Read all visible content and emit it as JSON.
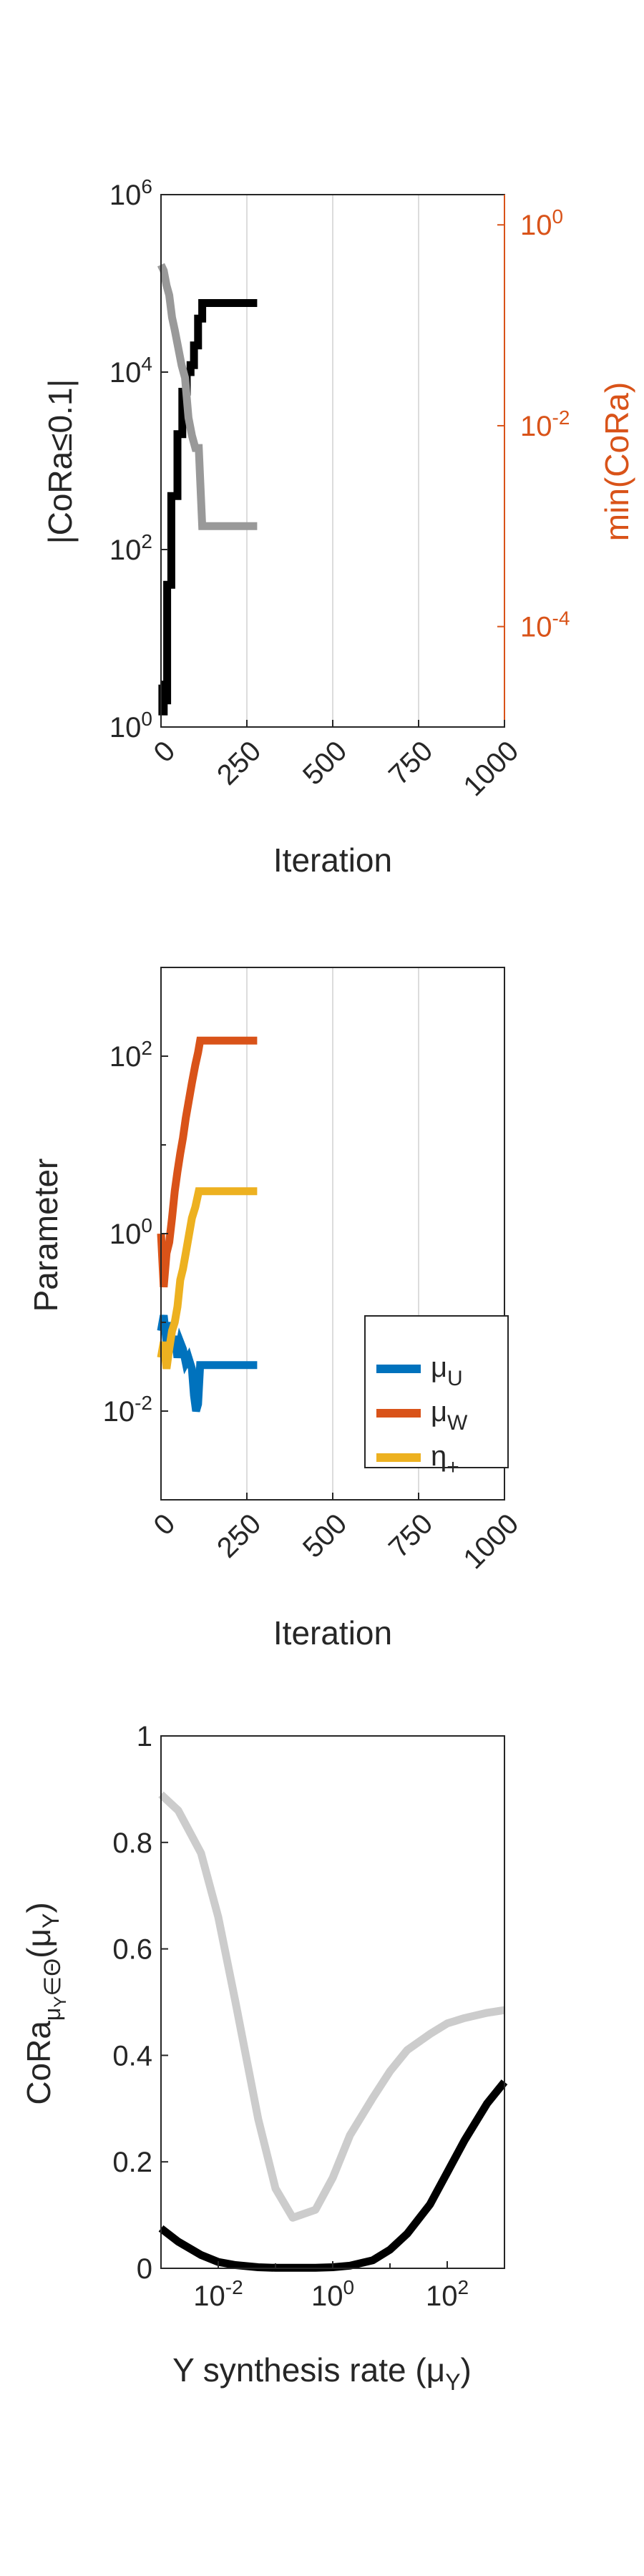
{
  "chart_data": [
    {
      "type": "line",
      "xlabel": "Iteration",
      "ylabel": "|CoRa≤0.1|",
      "ylabel_right": "min(CoRa)",
      "x_ticks": [
        "0",
        "250",
        "500",
        "750",
        "1000"
      ],
      "xlim": [
        0,
        1000
      ],
      "y_scale": "log",
      "ylim": [
        1,
        1000000
      ],
      "y_ticks": [
        {
          "base": "10",
          "exp": "0"
        },
        {
          "base": "10",
          "exp": "2"
        },
        {
          "base": "10",
          "exp": "4"
        },
        {
          "base": "10",
          "exp": "6"
        }
      ],
      "y_right_scale": "log",
      "ylim_right": [
        1e-05,
        2
      ],
      "y_right_ticks": [
        {
          "base": "10",
          "exp": "-4"
        },
        {
          "base": "10",
          "exp": "-2"
        },
        {
          "base": "10",
          "exp": "0"
        }
      ],
      "grid_x": true,
      "series": [
        {
          "axis": "left",
          "color": "#000000",
          "x": [
            0,
            4,
            4,
            8,
            8,
            18,
            18,
            30,
            30,
            48,
            48,
            62,
            62,
            75,
            75,
            86,
            86,
            96,
            96,
            108,
            108,
            120,
            120,
            280
          ],
          "y": [
            3,
            3,
            1.5,
            1.5,
            2,
            2,
            40,
            40,
            400,
            400,
            2000,
            2000,
            6000,
            6000,
            10000,
            10000,
            12000,
            12000,
            20000,
            20000,
            40000,
            40000,
            60000,
            60000
          ]
        },
        {
          "axis": "right",
          "color": "#999999",
          "x": [
            0,
            8,
            16,
            24,
            32,
            40,
            50,
            60,
            70,
            80,
            90,
            100,
            110,
            120,
            280
          ],
          "y": [
            0.4,
            0.35,
            0.25,
            0.2,
            0.12,
            0.09,
            0.06,
            0.04,
            0.03,
            0.012,
            0.008,
            0.006,
            0.006,
            0.001,
            0.001
          ]
        }
      ]
    },
    {
      "type": "line",
      "xlabel": "Iteration",
      "ylabel": "Parameter",
      "x_ticks": [
        "0",
        "250",
        "500",
        "750",
        "1000"
      ],
      "xlim": [
        0,
        1000
      ],
      "y_scale": "log",
      "ylim": [
        0.001,
        1000
      ],
      "y_ticks": [
        {
          "base": "10",
          "exp": "-2"
        },
        {
          "base": "10",
          "exp": "0"
        },
        {
          "base": "10",
          "exp": "2"
        }
      ],
      "grid_x": true,
      "legend_position": "right",
      "series": [
        {
          "name": "μU",
          "name_main": "μ",
          "name_sub": "U",
          "color": "#0072BD",
          "x": [
            0,
            8,
            16,
            24,
            32,
            40,
            48,
            56,
            64,
            72,
            80,
            90,
            96,
            102,
            108,
            114,
            120,
            280
          ],
          "y": [
            0.08,
            0.12,
            0.06,
            0.1,
            0.05,
            0.07,
            0.04,
            0.06,
            0.05,
            0.035,
            0.04,
            0.03,
            0.015,
            0.01,
            0.012,
            0.033,
            0.033,
            0.033
          ]
        },
        {
          "name": "μW",
          "name_main": "μ",
          "name_sub": "W",
          "color": "#D95319",
          "x": [
            0,
            8,
            16,
            24,
            32,
            40,
            48,
            56,
            64,
            72,
            80,
            90,
            100,
            108,
            114,
            120,
            280
          ],
          "y": [
            1,
            0.25,
            0.6,
            0.8,
            1.5,
            3,
            5,
            8,
            12,
            20,
            30,
            50,
            80,
            110,
            150,
            150,
            150
          ]
        },
        {
          "name": "η+",
          "name_main": "η",
          "name_sub": "+",
          "color": "#EDB120",
          "x": [
            0,
            8,
            16,
            24,
            32,
            40,
            48,
            56,
            64,
            72,
            80,
            90,
            100,
            110,
            120,
            280
          ],
          "y": [
            0.04,
            0.06,
            0.03,
            0.05,
            0.08,
            0.1,
            0.15,
            0.3,
            0.4,
            0.6,
            0.9,
            1.5,
            2,
            3,
            3,
            3
          ]
        }
      ]
    },
    {
      "type": "line",
      "xlabel": "Y synthesis rate (μY)",
      "xlabel_parts": {
        "main": "Y synthesis rate (",
        "mu": "μ",
        "sub": "Y",
        "close": ")"
      },
      "ylabel": "CoRaμY∈Θ(μY)",
      "ylabel_parts": {
        "main": "CoRa",
        "sub": "μ",
        "subsub": "Y",
        "sub2": "∈Θ",
        "open": "(",
        "mu": "μ",
        "musub": "Y",
        "close": ")"
      },
      "x_scale": "log",
      "xlim": [
        0.001,
        1000
      ],
      "x_ticks": [
        {
          "base": "10",
          "exp": "-2"
        },
        {
          "base": "10",
          "exp": "0"
        },
        {
          "base": "10",
          "exp": "2"
        }
      ],
      "ylim": [
        0,
        1
      ],
      "y_ticks": [
        "0",
        "0.2",
        "0.4",
        "0.6",
        "0.8",
        "1"
      ],
      "series": [
        {
          "color": "#CCCCCC",
          "x": [
            0.001,
            0.002,
            0.005,
            0.01,
            0.02,
            0.05,
            0.1,
            0.2,
            0.5,
            1,
            2,
            5,
            10,
            20,
            50,
            100,
            200,
            500,
            1000
          ],
          "y": [
            0.89,
            0.86,
            0.78,
            0.66,
            0.5,
            0.28,
            0.15,
            0.095,
            0.11,
            0.17,
            0.25,
            0.32,
            0.37,
            0.41,
            0.44,
            0.46,
            0.47,
            0.48,
            0.485
          ]
        },
        {
          "color": "#000000",
          "x": [
            0.001,
            0.002,
            0.005,
            0.01,
            0.02,
            0.05,
            0.1,
            0.2,
            0.5,
            1,
            2,
            5,
            10,
            20,
            50,
            100,
            200,
            500,
            1000
          ],
          "y": [
            0.075,
            0.05,
            0.025,
            0.012,
            0.006,
            0.002,
            0.001,
            0.001,
            0.001,
            0.002,
            0.005,
            0.015,
            0.035,
            0.065,
            0.12,
            0.18,
            0.24,
            0.31,
            0.35
          ]
        }
      ]
    }
  ]
}
